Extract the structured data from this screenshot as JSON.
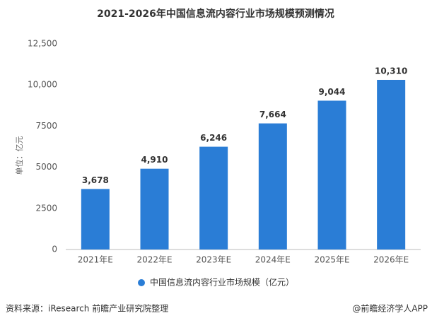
{
  "chart_data": {
    "type": "bar",
    "title": "2021-2026年中国信息流内容行业市场规模预测情况",
    "y_label": "单位：亿元",
    "categories": [
      "2021年E",
      "2022年E",
      "2023年E",
      "2024年E",
      "2025年E",
      "2026年E"
    ],
    "series": [
      {
        "name": "中国信息流内容行业市场规模（亿元）",
        "color": "#2a7dd6",
        "values": [
          3678,
          4910,
          6246,
          7664,
          9044,
          10310
        ],
        "value_labels": [
          "3,678",
          "4,910",
          "6,246",
          "7,664",
          "9,044",
          "10,310"
        ]
      }
    ],
    "ylim": [
      0,
      12500
    ],
    "yticks": [
      0,
      2500,
      5000,
      7500,
      {
        "value": 10000,
        "label": "10,000"
      },
      {
        "value": 12500,
        "label": "12,500"
      }
    ],
    "grid": false,
    "legend": "bottom",
    "source": "资料来源：iResearch 前瞻产业研究院整理",
    "credit": "@前瞻经济学人APP"
  }
}
